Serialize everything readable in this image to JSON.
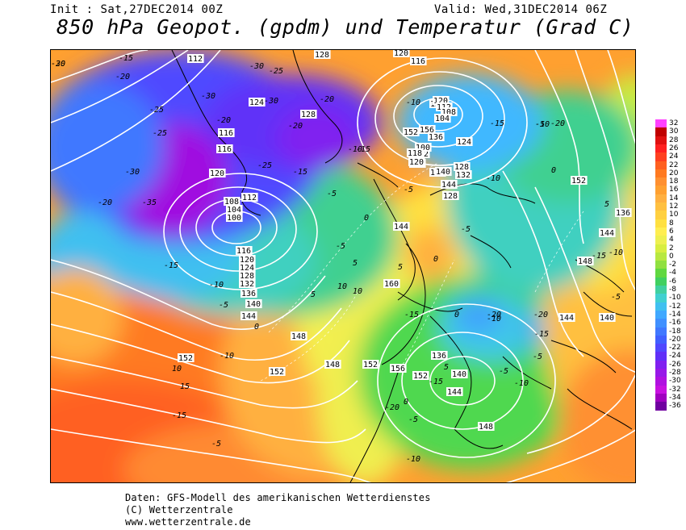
{
  "header": {
    "init": "Init : Sat,27DEC2014 00Z",
    "valid": "Valid: Wed,31DEC2014 06Z"
  },
  "title": "850 hPa Geopot. (gpdm) und Temperatur (Grad C)",
  "footer": {
    "line1": "Daten: GFS-Modell des amerikanischen Wetterdienstes",
    "line2": "(C) Wetterzentrale",
    "line3": "www.wetterzentrale.de"
  },
  "colors": {
    "frame": "#000000",
    "contour": "#ffffff",
    "coast": "#000000"
  },
  "scale": {
    "unit": "Grad C",
    "labels": [
      "32",
      "30",
      "28",
      "26",
      "24",
      "22",
      "20",
      "18",
      "16",
      "14",
      "12",
      "10",
      "8",
      "6",
      "4",
      "2",
      "0",
      "-2",
      "-4",
      "-6",
      "-8",
      "-10",
      "-12",
      "-14",
      "-16",
      "-18",
      "-20",
      "-22",
      "-24",
      "-26",
      "-28",
      "-30",
      "-32",
      "-34",
      "-36"
    ],
    "colors": [
      "#ff40ff",
      "#c00000",
      "#e01010",
      "#ff2020",
      "#ff4020",
      "#ff6020",
      "#ff7a20",
      "#ff9030",
      "#ffa030",
      "#ffb040",
      "#ffc040",
      "#ffd040",
      "#ffe040",
      "#ffee50",
      "#eef050",
      "#d8ee40",
      "#b8e840",
      "#90e040",
      "#60d840",
      "#40d060",
      "#40d0a0",
      "#40d0d0",
      "#40c0f0",
      "#40a8ff",
      "#4090ff",
      "#4078ff",
      "#4060ff",
      "#5048ff",
      "#6030f8",
      "#8020f0",
      "#9818e8",
      "#b010e0",
      "#c810e0",
      "#a000c0",
      "#7000a0"
    ]
  },
  "map_labels": {
    "geopotential": [
      "112",
      "128",
      "120",
      "116",
      "124",
      "116",
      "128",
      "116",
      "120",
      "112",
      "108",
      "104",
      "100",
      "116",
      "120",
      "124",
      "128",
      "132",
      "136",
      "140",
      "144",
      "148",
      "152",
      "152",
      "156",
      "160",
      "152",
      "148",
      "144",
      "140",
      "144",
      "152",
      "156",
      "152",
      "152",
      "136",
      "140",
      "144",
      "148",
      "132",
      "128",
      "124",
      "120",
      "112",
      "108",
      "104",
      "100",
      "118",
      "120",
      "128",
      "136",
      "140",
      "144",
      "152",
      "148",
      "144",
      "140",
      "136",
      "144",
      "148",
      "152"
    ],
    "temperature": [
      "-20",
      "-15",
      "-20",
      "-25",
      "-30",
      "-25",
      "-30",
      "-20",
      "-25",
      "-20",
      "-35",
      "-30",
      "-20",
      "-15",
      "-10",
      "-5",
      "0",
      "5",
      "10",
      "-15",
      "-10",
      "-5",
      "0",
      "5",
      "10",
      "15",
      "-5",
      "-10",
      "-15",
      "-5",
      "-10",
      "-5",
      "-5",
      "0",
      "5",
      "10",
      "-20",
      "-15",
      "-10",
      "-5",
      "0",
      "5",
      "-15",
      "-10",
      "-5",
      "0",
      "5",
      "-10",
      "-5",
      "-15",
      "-10",
      "-5",
      "-5",
      "0",
      "-10",
      "-15",
      "-20",
      "-20",
      "-15",
      "-10",
      "-20",
      "-15",
      "-25",
      "-20",
      "-30",
      "-30"
    ]
  }
}
